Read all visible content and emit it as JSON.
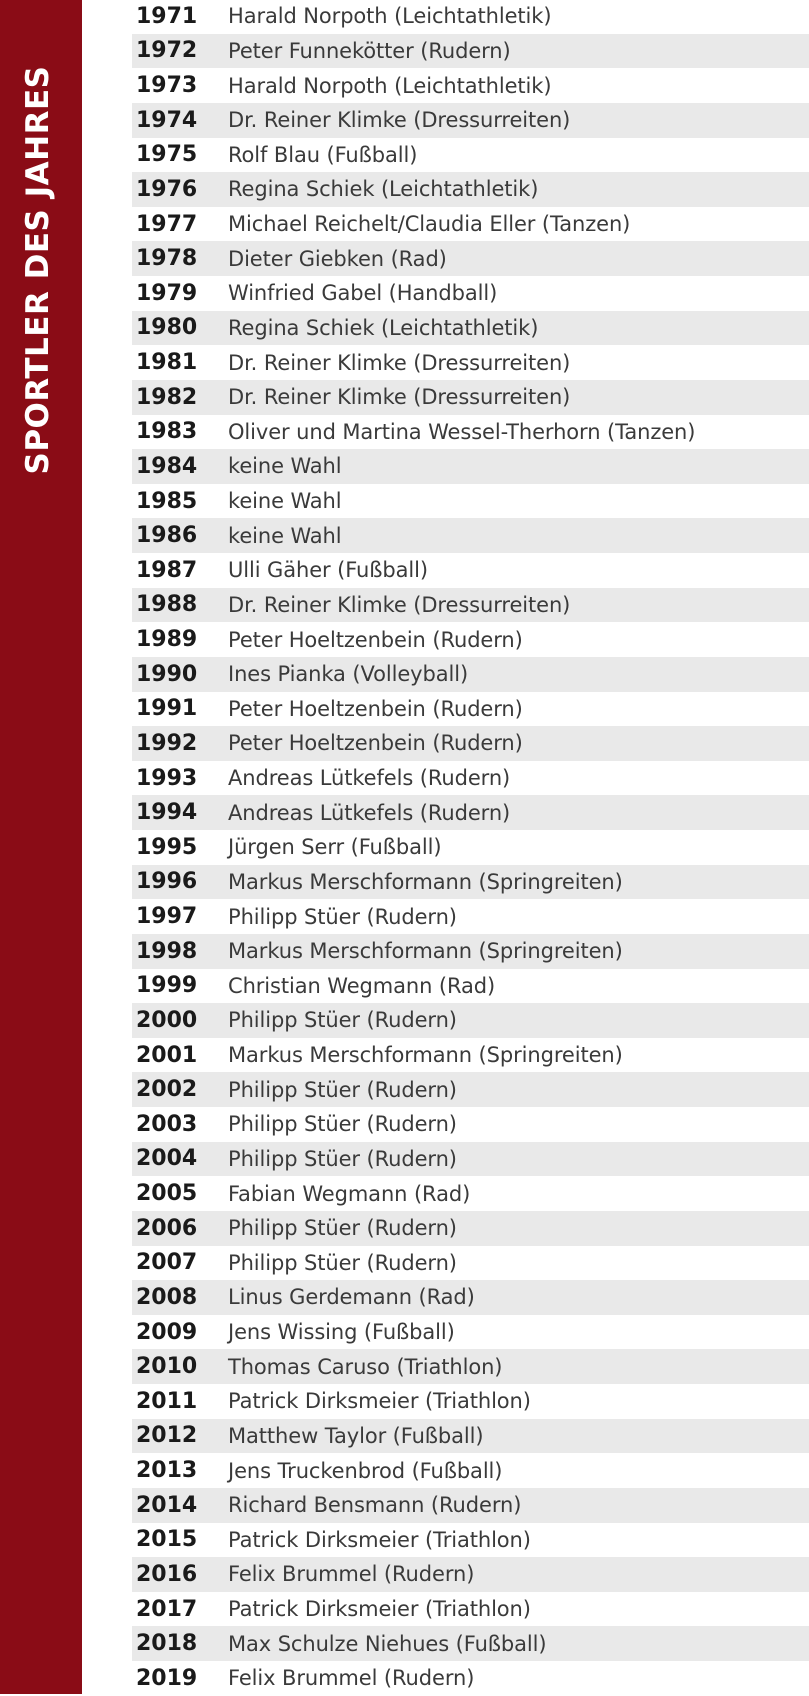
{
  "sidebar": {
    "title": "SPORTLER DES JAHRES"
  },
  "colors": {
    "sidebar_bg": "#8a0c16",
    "stripe_bg": "#e9e9e9",
    "text": "#3a3a3a"
  },
  "entries": [
    {
      "year": "1971",
      "name": "Harald Norpoth (Leichtathletik)"
    },
    {
      "year": "1972",
      "name": "Peter Funnekötter (Rudern)"
    },
    {
      "year": "1973",
      "name": "Harald Norpoth (Leichtathletik)"
    },
    {
      "year": "1974",
      "name": "Dr. Reiner Klimke (Dressurreiten)"
    },
    {
      "year": "1975",
      "name": "Rolf Blau (Fußball)"
    },
    {
      "year": "1976",
      "name": "Regina Schiek (Leichtathletik)"
    },
    {
      "year": "1977",
      "name": "Michael Reichelt/Claudia Eller (Tanzen)"
    },
    {
      "year": "1978",
      "name": "Dieter Giebken (Rad)"
    },
    {
      "year": "1979",
      "name": "Winfried Gabel (Handball)"
    },
    {
      "year": "1980",
      "name": "Regina Schiek (Leichtathletik)"
    },
    {
      "year": "1981",
      "name": "Dr. Reiner Klimke (Dressurreiten)"
    },
    {
      "year": "1982",
      "name": "Dr. Reiner Klimke (Dressurreiten)"
    },
    {
      "year": "1983",
      "name": "Oliver und Martina Wessel-Therhorn (Tanzen)"
    },
    {
      "year": "1984",
      "name": "keine Wahl"
    },
    {
      "year": "1985",
      "name": "keine Wahl"
    },
    {
      "year": "1986",
      "name": "keine Wahl"
    },
    {
      "year": "1987",
      "name": "Ulli Gäher (Fußball)"
    },
    {
      "year": "1988",
      "name": "Dr. Reiner Klimke (Dressurreiten)"
    },
    {
      "year": "1989",
      "name": "Peter Hoeltzenbein (Rudern)"
    },
    {
      "year": "1990",
      "name": "Ines Pianka (Volleyball)"
    },
    {
      "year": "1991",
      "name": "Peter Hoeltzenbein (Rudern)"
    },
    {
      "year": "1992",
      "name": "Peter Hoeltzenbein (Rudern)"
    },
    {
      "year": "1993",
      "name": "Andreas Lütkefels (Rudern)"
    },
    {
      "year": "1994",
      "name": "Andreas Lütkefels (Rudern)"
    },
    {
      "year": "1995",
      "name": "Jürgen Serr (Fußball)"
    },
    {
      "year": "1996",
      "name": "Markus Merschformann (Springreiten)"
    },
    {
      "year": "1997",
      "name": "Philipp Stüer (Rudern)"
    },
    {
      "year": "1998",
      "name": "Markus Merschformann (Springreiten)"
    },
    {
      "year": "1999",
      "name": "Christian Wegmann (Rad)"
    },
    {
      "year": "2000",
      "name": "Philipp Stüer (Rudern)"
    },
    {
      "year": "2001",
      "name": "Markus Merschformann (Springreiten)"
    },
    {
      "year": "2002",
      "name": "Philipp Stüer (Rudern)"
    },
    {
      "year": "2003",
      "name": "Philipp Stüer (Rudern)"
    },
    {
      "year": "2004",
      "name": "Philipp Stüer (Rudern)"
    },
    {
      "year": "2005",
      "name": "Fabian Wegmann (Rad)"
    },
    {
      "year": "2006",
      "name": "Philipp Stüer (Rudern)"
    },
    {
      "year": "2007",
      "name": "Philipp Stüer (Rudern)"
    },
    {
      "year": "2008",
      "name": "Linus Gerdemann (Rad)"
    },
    {
      "year": "2009",
      "name": "Jens Wissing (Fußball)"
    },
    {
      "year": "2010",
      "name": "Thomas Caruso (Triathlon)"
    },
    {
      "year": "2011",
      "name": "Patrick Dirksmeier (Triathlon)"
    },
    {
      "year": "2012",
      "name": "Matthew Taylor (Fußball)"
    },
    {
      "year": "2013",
      "name": "Jens Truckenbrod (Fußball)"
    },
    {
      "year": "2014",
      "name": "Richard Bensmann (Rudern)"
    },
    {
      "year": "2015",
      "name": "Patrick Dirksmeier (Triathlon)"
    },
    {
      "year": "2016",
      "name": "Felix Brummel (Rudern)"
    },
    {
      "year": "2017",
      "name": "Patrick Dirksmeier (Triathlon)"
    },
    {
      "year": "2018",
      "name": "Max Schulze Niehues (Fußball)"
    },
    {
      "year": "2019",
      "name": "Felix Brummel (Rudern)"
    }
  ]
}
